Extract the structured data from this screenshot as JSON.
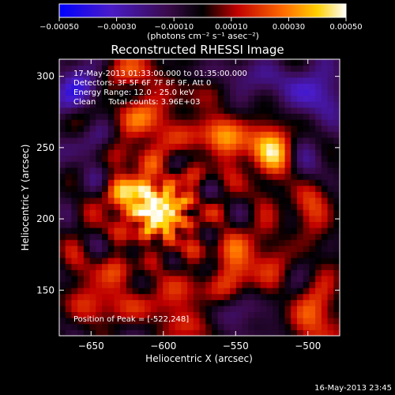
{
  "chart_data": {
    "type": "heatmap",
    "title": "Reconstructed RHESSI Image",
    "xlabel": "Heliocentric X (arcsec)",
    "ylabel": "Heliocentric Y (arcsec)",
    "xlim": [
      -672,
      -478
    ],
    "ylim": [
      118,
      312
    ],
    "x_ticks": [
      -650,
      -600,
      -550,
      -500
    ],
    "y_ticks": [
      150,
      200,
      250,
      300
    ],
    "x_tick_labels": [
      "−650",
      "−600",
      "−550",
      "−500"
    ],
    "y_tick_labels": [
      "150",
      "200",
      "250",
      "300"
    ],
    "colorbar": {
      "range": [
        -0.0005,
        0.0005
      ],
      "ticks": [
        -0.0005,
        -0.0003,
        -0.0001,
        0.0001,
        0.0003,
        0.0005
      ],
      "tick_labels": [
        "−0.00050",
        "−0.00030",
        "−0.00010",
        "0.00010",
        "0.00030",
        "0.00050"
      ],
      "unit_label": "(photons cm⁻² s⁻¹ asec⁻²)",
      "colormap": "blue-purple-black-red-orange-yellow-white"
    },
    "annotations": [
      "17-May-2013 01:33:00.000 to 01:35:00.000",
      "Detectors: 3F 5F 6F 7F 8F 9F, Att 0",
      "Energy Range: 12.0 - 25.0 keV",
      "Clean     Total counts: 3.96E+03",
      "Position of Peak = [-522,248]"
    ],
    "peak_position": [
      -522,
      248
    ],
    "source_centers": [
      {
        "x": -600,
        "y": 205,
        "amp": 0.00042
      },
      {
        "x": -622,
        "y": 218,
        "amp": 0.00032
      },
      {
        "x": -610,
        "y": 265,
        "amp": 0.00022
      },
      {
        "x": -625,
        "y": 300,
        "amp": 0.00016
      },
      {
        "x": -522,
        "y": 248,
        "amp": 0.00048
      },
      {
        "x": -560,
        "y": 260,
        "amp": 0.00025
      },
      {
        "x": -545,
        "y": 170,
        "amp": 0.00026
      },
      {
        "x": -640,
        "y": 150,
        "amp": 0.0002
      },
      {
        "x": -590,
        "y": 140,
        "amp": 0.00018
      },
      {
        "x": -500,
        "y": 215,
        "amp": 0.0002
      },
      {
        "x": -495,
        "y": 130,
        "amp": 0.00022
      }
    ],
    "negative_centers": [
      {
        "x": -660,
        "y": 295,
        "amp": 0.00028
      },
      {
        "x": -495,
        "y": 290,
        "amp": 0.0003
      },
      {
        "x": -505,
        "y": 240,
        "amp": 0.0003
      },
      {
        "x": -540,
        "y": 295,
        "amp": 0.00018
      },
      {
        "x": -655,
        "y": 240,
        "amp": 0.00015
      },
      {
        "x": -540,
        "y": 125,
        "amp": 0.00016
      }
    ]
  },
  "footer": {
    "timestamp": "16-May-2013 23:45"
  }
}
